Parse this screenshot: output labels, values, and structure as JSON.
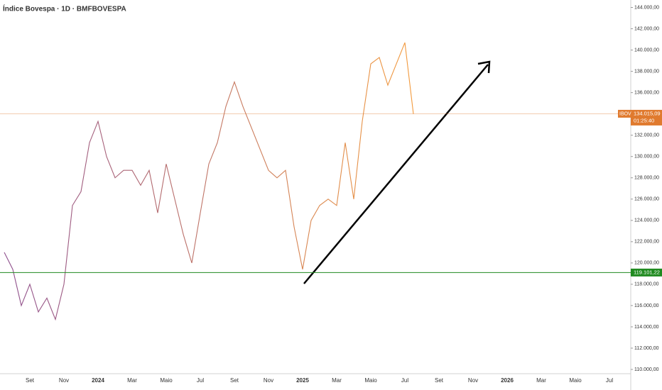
{
  "chart_data": {
    "type": "line",
    "title": "Índice Bovespa · 1D · BMFBOVESPA",
    "categories": [
      null,
      null,
      null,
      "Set",
      null,
      null,
      null,
      "Nov",
      null,
      null,
      null,
      "2024",
      null,
      null,
      null,
      "Mar",
      null,
      null,
      null,
      "Maio",
      null,
      null,
      null,
      "Jul",
      null,
      null,
      null,
      "Set",
      null,
      null,
      null,
      "Nov",
      null,
      null,
      null,
      "2025",
      null,
      null,
      null,
      "Mar",
      null,
      null,
      null,
      "Maio",
      null,
      null,
      null,
      "Jul",
      null,
      null,
      null,
      "Set",
      null,
      null,
      null,
      "Nov",
      null,
      null,
      null,
      "2026",
      null,
      null,
      null,
      "Mar",
      null,
      null,
      null,
      "Maio",
      null,
      null,
      null,
      "Jul",
      null,
      null
    ],
    "series": [
      {
        "name": "IBOV",
        "color": "#f39a3c",
        "color_start": "#8e4f8e",
        "values": [
          121000,
          119400,
          116000,
          118000,
          115400,
          116700,
          114700,
          118000,
          125400,
          126700,
          131300,
          133300,
          130000,
          128000,
          128700,
          128700,
          127300,
          128700,
          124700,
          129300,
          126000,
          122700,
          120000,
          124700,
          129300,
          131300,
          134700,
          137000,
          134700,
          132700,
          130700,
          128700,
          128000,
          128700,
          123400,
          119400,
          124000,
          125400,
          126000,
          125400,
          131300,
          126000,
          133300,
          138700,
          139300,
          136700,
          138700,
          140700,
          134000,
          null,
          null,
          null,
          null,
          null,
          null,
          null,
          null,
          null,
          null,
          null,
          null,
          null,
          null,
          null,
          null,
          null,
          null,
          null,
          null,
          null,
          null,
          null,
          null,
          null
        ]
      }
    ],
    "ylim": [
      109400,
      144700
    ],
    "yticks": [
      {
        "value": 110000,
        "label": "110.000,00"
      },
      {
        "value": 112000,
        "label": "112.000,00"
      },
      {
        "value": 114000,
        "label": "114.000,00"
      },
      {
        "value": 116000,
        "label": "116.000,00"
      },
      {
        "value": 118000,
        "label": "118.000,00"
      },
      {
        "value": 120000,
        "label": "120.000,00"
      },
      {
        "value": 122000,
        "label": "122.000,00"
      },
      {
        "value": 124000,
        "label": "124.000,00"
      },
      {
        "value": 126000,
        "label": "126.000,00"
      },
      {
        "value": 128000,
        "label": "128.000,00"
      },
      {
        "value": 130000,
        "label": "130.000,00"
      },
      {
        "value": 132000,
        "label": "132.000,00"
      },
      {
        "value": 134000,
        "label": "134.000,00"
      },
      {
        "value": 136000,
        "label": "136.000,00"
      },
      {
        "value": 138000,
        "label": "138.000,00"
      },
      {
        "value": 140000,
        "label": "140.000,00"
      },
      {
        "value": 142000,
        "label": "142.000,00"
      },
      {
        "value": 144000,
        "label": "144.000,00"
      }
    ],
    "price_lines": [
      {
        "value": 134015.09,
        "label": "134.015,09",
        "color": "#e07a2e"
      },
      {
        "value": 119101.22,
        "label": "119.101,22",
        "color": "#1f8a1f"
      }
    ],
    "countdown": "01:25:40"
  }
}
